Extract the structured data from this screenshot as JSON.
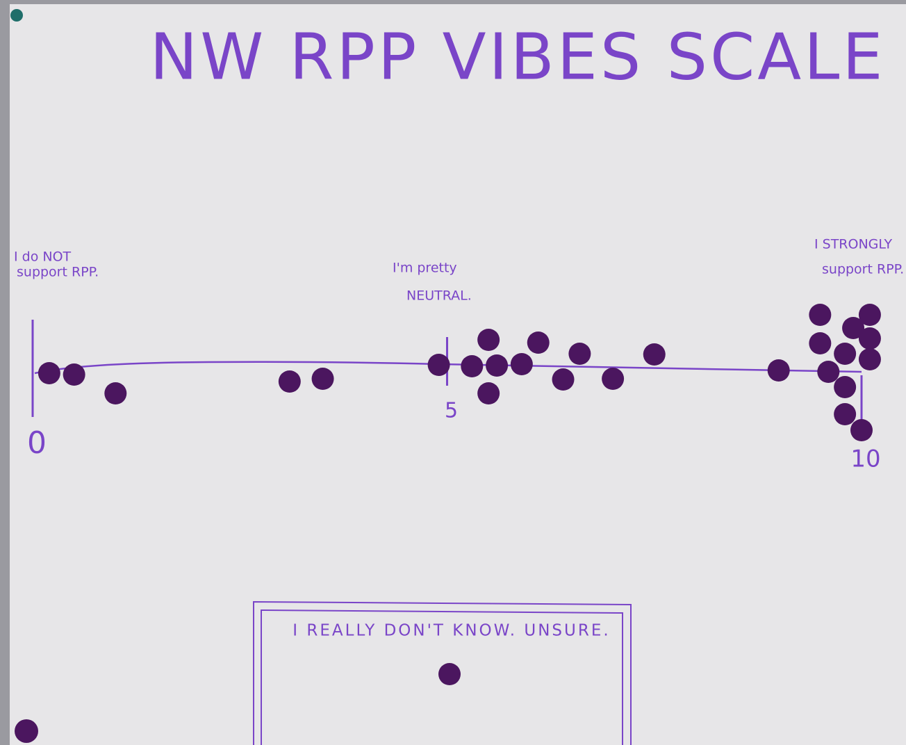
{
  "chart_data": {
    "type": "dot",
    "title": "NW RPP VIBES SCALE",
    "xlim": [
      0,
      10
    ],
    "xticks": [
      0,
      5,
      10
    ],
    "annotations": [
      [
        "I do NOT",
        "support RPP."
      ],
      [
        "I'm pretty",
        "NEUTRAL."
      ],
      [
        "I STRONGLY",
        "support RPP."
      ]
    ],
    "values": [
      0.2,
      0.5,
      1.0,
      3.1,
      3.5,
      4.9,
      5.3,
      5.5,
      5.6,
      5.5,
      5.9,
      6.1,
      6.4,
      6.6,
      7.0,
      7.5,
      9.0,
      9.5,
      9.5,
      9.6,
      9.8,
      9.9,
      10.1,
      10.1,
      10.1,
      9.8,
      9.8,
      10.0
    ],
    "color": "#4b165f",
    "line_color": "#7a45c8",
    "unsure": {
      "label": "I REALLY DON'T KNOW. UNSURE.",
      "count": 1
    }
  }
}
